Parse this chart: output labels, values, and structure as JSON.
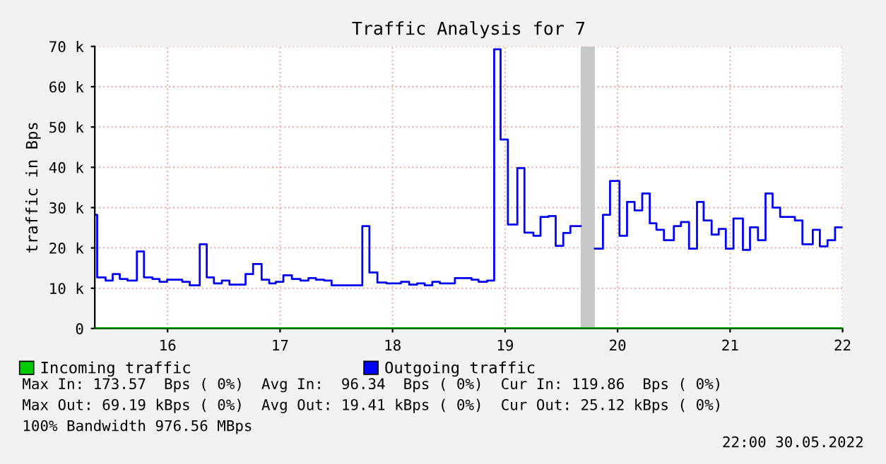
{
  "chart_data": {
    "type": "step",
    "title": "Traffic Analysis for 7",
    "ylabel": "traffic in Bps",
    "xlim": [
      15.353,
      22.0
    ],
    "ylim": [
      0,
      70000
    ],
    "xticks": [
      16,
      17,
      18,
      19,
      20,
      21,
      22
    ],
    "yticks": [
      {
        "value": 0,
        "label": "0"
      },
      {
        "value": 10000,
        "label": "10 k"
      },
      {
        "value": 20000,
        "label": "20 k"
      },
      {
        "value": 30000,
        "label": "30 k"
      },
      {
        "value": 40000,
        "label": "40 k"
      },
      {
        "value": 50000,
        "label": "50 k"
      },
      {
        "value": 60000,
        "label": "60 k"
      },
      {
        "value": 70000,
        "label": "70 k"
      }
    ],
    "grid": true,
    "legend": "bottom",
    "series": [
      {
        "name": "Incoming traffic",
        "color": "#00cc00",
        "x": [
          15.353,
          22.0
        ],
        "values": [
          100,
          100
        ]
      },
      {
        "name": "Outgoing traffic",
        "color": "#0000ff",
        "x": [
          15.353,
          15.374,
          15.449,
          15.512,
          15.575,
          15.643,
          15.727,
          15.79,
          15.865,
          15.928,
          15.996,
          16.13,
          16.197,
          16.286,
          16.348,
          16.412,
          16.483,
          16.55,
          16.693,
          16.76,
          16.836,
          16.903,
          16.962,
          17.029,
          17.105,
          17.18,
          17.252,
          17.319,
          17.391,
          17.458,
          17.731,
          17.794,
          17.865,
          17.945,
          18.075,
          18.147,
          18.218,
          18.285,
          18.353,
          18.42,
          18.554,
          18.702,
          18.764,
          18.84,
          18.903,
          18.96,
          19.025,
          19.109,
          19.172,
          19.252,
          19.315,
          19.387,
          19.45,
          19.517,
          19.58,
          19.672,
          19.798,
          19.87,
          19.933,
          20.017,
          20.084,
          20.151,
          20.219,
          20.286,
          20.345,
          20.412,
          20.5,
          20.563,
          20.635,
          20.706,
          20.765,
          20.836,
          20.899,
          20.962,
          21.03,
          21.114,
          21.177,
          21.248,
          21.315,
          21.378,
          21.445,
          21.576,
          21.643,
          21.735,
          21.798,
          21.866,
          21.933,
          22.0
        ],
        "values": [
          28200,
          12700,
          11900,
          13500,
          12300,
          11900,
          19100,
          12700,
          12300,
          11600,
          12100,
          11600,
          10700,
          20900,
          12700,
          11200,
          11900,
          10900,
          13500,
          16000,
          12100,
          11200,
          11600,
          13200,
          12300,
          11900,
          12500,
          12100,
          11900,
          10700,
          25400,
          13900,
          11400,
          11200,
          11600,
          10900,
          11200,
          10700,
          11600,
          11200,
          12500,
          12100,
          11600,
          11900,
          69300,
          46900,
          25800,
          39800,
          23800,
          23000,
          27700,
          27900,
          20500,
          23700,
          25400,
          null,
          19800,
          28200,
          36600,
          23000,
          31400,
          29300,
          33500,
          26100,
          24500,
          21900,
          25400,
          26400,
          19800,
          31400,
          26800,
          23300,
          24700,
          19800,
          27300,
          19500,
          25100,
          21900,
          33500,
          30000,
          27700,
          26800,
          20900,
          24500,
          20400,
          21900,
          25100,
          25100
        ]
      }
    ],
    "bands": [
      {
        "axis": "x",
        "from": 19.672,
        "to": 19.798,
        "color": "#c8c8c8"
      }
    ],
    "annotations": [
      "Max In: 173.57  Bps ( 0%)  Avg In:  96.34  Bps ( 0%)  Cur In: 119.86  Bps ( 0%)",
      "Max Out: 69.19 kBps ( 0%)  Avg Out: 19.41 kBps ( 0%)  Cur Out: 25.12 kBps ( 0%)",
      "100% Bandwidth 976.56 MBps",
      "22:00 30.05.2022"
    ]
  }
}
